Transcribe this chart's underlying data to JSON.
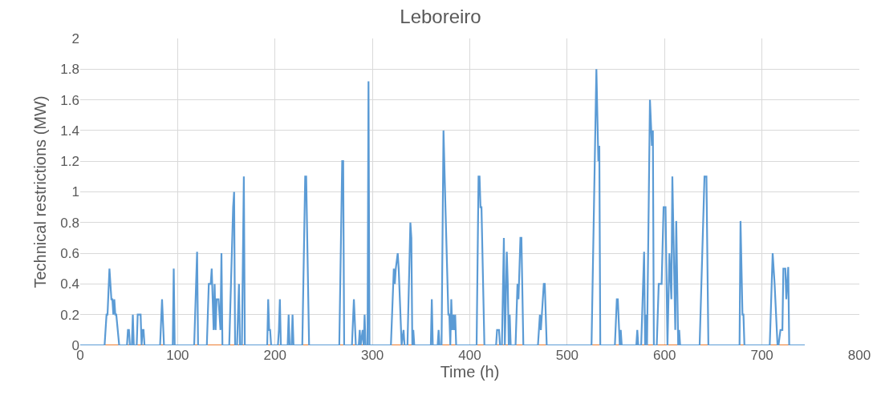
{
  "chart_data": {
    "type": "line",
    "title": "Leboreiro",
    "xlabel": "Time (h)",
    "ylabel": "Technical restrictions (MW)",
    "xlim": [
      0,
      800
    ],
    "xticks": [
      0,
      100,
      200,
      300,
      400,
      500,
      600,
      700,
      800
    ],
    "ylim": [
      0,
      2
    ],
    "yticks": [
      0,
      0.2,
      0.4,
      0.6,
      0.8,
      1,
      1.2,
      1.4,
      1.6,
      1.8,
      2
    ],
    "grid": true,
    "marker": "none",
    "line_style": "solid",
    "series": [
      {
        "color": "#ed7d31",
        "x": [
          0,
          743
        ],
        "values": [
          0,
          0
        ]
      },
      {
        "color": "#5b9bd5",
        "x": [
          0,
          25,
          27,
          28,
          30,
          32,
          33,
          34,
          35,
          36,
          37,
          40,
          48,
          49,
          50,
          51,
          53,
          54,
          55,
          58,
          59,
          62,
          63,
          64,
          65,
          66,
          82,
          84,
          86,
          95,
          96,
          97,
          117,
          120,
          121,
          130,
          132,
          134,
          135,
          136,
          137,
          138,
          139,
          140,
          142,
          144,
          145,
          146,
          153,
          157,
          158,
          159,
          161,
          163,
          164,
          166,
          168,
          169,
          192,
          193,
          194,
          195,
          196,
          203,
          204,
          205,
          206,
          213,
          214,
          215,
          217,
          218,
          219,
          228,
          231,
          232,
          235,
          266,
          269,
          270,
          271,
          279,
          281,
          283,
          286,
          287,
          288,
          290,
          291,
          292,
          293,
          295,
          296,
          297,
          319,
          322,
          323,
          324,
          326,
          327,
          330,
          332,
          333,
          336,
          339,
          340,
          341,
          342,
          343,
          360,
          361,
          362,
          367,
          368,
          369,
          371,
          373,
          375,
          378,
          379,
          380,
          381,
          382,
          383,
          384,
          385,
          386,
          407,
          409,
          410,
          411,
          412,
          415,
          427,
          428,
          430,
          431,
          433,
          435,
          436,
          437,
          438,
          439,
          440,
          441,
          442,
          447,
          449,
          450,
          452,
          453,
          455,
          470,
          472,
          473,
          474,
          476,
          477,
          479,
          525,
          530,
          531,
          532,
          533,
          534,
          549,
          551,
          552,
          554,
          555,
          556,
          571,
          572,
          573,
          575,
          576,
          579,
          580,
          581,
          582,
          585,
          587,
          588,
          589,
          592,
          594,
          597,
          599,
          601,
          603,
          605,
          607,
          608,
          611,
          612,
          614,
          615,
          616,
          636,
          641,
          643,
          645,
          677,
          678,
          680,
          681,
          682,
          708,
          711,
          713,
          716,
          717,
          719,
          721,
          722,
          724,
          725,
          727,
          728,
          744
        ],
        "values": [
          0,
          0,
          0.2,
          0.2,
          0.5,
          0.3,
          0.3,
          0.2,
          0.3,
          0.2,
          0.2,
          0,
          0,
          0.1,
          0.1,
          0,
          0,
          0.2,
          0,
          0,
          0.2,
          0.2,
          0,
          0.1,
          0.1,
          0,
          0,
          0.3,
          0,
          0,
          0.5,
          0,
          0,
          0.61,
          0,
          0,
          0.4,
          0.4,
          0.5,
          0.3,
          0.1,
          0.4,
          0.1,
          0.3,
          0.3,
          0.1,
          0.6,
          0,
          0,
          0.9,
          1,
          0,
          0,
          0.4,
          0,
          0,
          1.1,
          0,
          0,
          0.3,
          0.1,
          0.1,
          0,
          0,
          0.1,
          0.3,
          0,
          0,
          0.2,
          0,
          0,
          0.2,
          0,
          0,
          1.1,
          1.1,
          0,
          0,
          1.2,
          1.2,
          0,
          0,
          0.3,
          0,
          0,
          0.1,
          0,
          0.1,
          0,
          0.2,
          0,
          0,
          1.72,
          0,
          0,
          0.5,
          0.4,
          0.5,
          0.6,
          0.5,
          0,
          0.1,
          0,
          0,
          0.8,
          0.7,
          0,
          0.1,
          0,
          0,
          0.3,
          0,
          0,
          0.1,
          0,
          0,
          1.4,
          0.9,
          0.2,
          0.2,
          0,
          0.3,
          0.1,
          0.2,
          0.1,
          0.2,
          0,
          0,
          1.1,
          1.1,
          0.9,
          0.9,
          0,
          0,
          0.1,
          0.1,
          0,
          0,
          0.7,
          0,
          0.3,
          0.61,
          0.4,
          0,
          0.2,
          0,
          0,
          0.4,
          0.3,
          0.7,
          0.7,
          0,
          0,
          0.2,
          0.1,
          0.2,
          0.4,
          0.4,
          0,
          0,
          1.8,
          1.5,
          1.2,
          1.3,
          0,
          0,
          0.3,
          0.3,
          0,
          0.1,
          0,
          0,
          0.1,
          0,
          0,
          0,
          0.61,
          0,
          0.2,
          0,
          1.6,
          1.3,
          1.4,
          0,
          0,
          0.4,
          0.4,
          0.9,
          0.9,
          0,
          0.6,
          0.3,
          1.1,
          0.1,
          0.81,
          0,
          0.1,
          0,
          0,
          1.1,
          1.1,
          0,
          0,
          0.81,
          0.2,
          0.2,
          0,
          0,
          0.6,
          0.4,
          0,
          0,
          0.1,
          0.1,
          0.5,
          0.5,
          0.3,
          0.51,
          0,
          0
        ]
      }
    ]
  }
}
